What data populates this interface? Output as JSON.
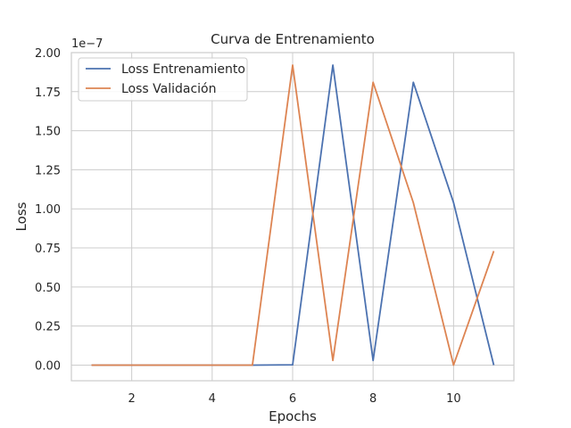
{
  "chart_data": {
    "type": "line",
    "title": "Curva de Entrenamiento",
    "xlabel": "Epochs",
    "ylabel": "Loss",
    "y_multiplier_label": "1e−7",
    "xlim": [
      0.5,
      11.5
    ],
    "ylim": [
      -0.1,
      2.0
    ],
    "x_ticks": [
      2,
      4,
      6,
      8,
      10
    ],
    "y_ticks": [
      0.0,
      0.25,
      0.5,
      0.75,
      1.0,
      1.25,
      1.5,
      1.75,
      2.0
    ],
    "y_tick_labels": [
      "0.00",
      "0.25",
      "0.50",
      "0.75",
      "1.00",
      "1.25",
      "1.50",
      "1.75",
      "2.00"
    ],
    "grid": true,
    "legend_position": "top-left",
    "x": [
      1,
      2,
      3,
      4,
      5,
      6,
      7,
      8,
      9,
      10,
      11
    ],
    "series": [
      {
        "name": "Loss Entrenamiento",
        "color": "#4c72b0",
        "values": [
          0.0,
          0.0,
          0.0,
          0.0,
          0.0,
          0.002,
          1.92,
          0.03,
          1.81,
          1.04,
          0.0
        ]
      },
      {
        "name": "Loss Validación",
        "color": "#dd8452",
        "values": [
          0.0,
          0.0,
          0.0,
          0.0,
          0.0,
          1.92,
          0.03,
          1.81,
          1.04,
          0.0,
          0.73
        ]
      }
    ]
  }
}
